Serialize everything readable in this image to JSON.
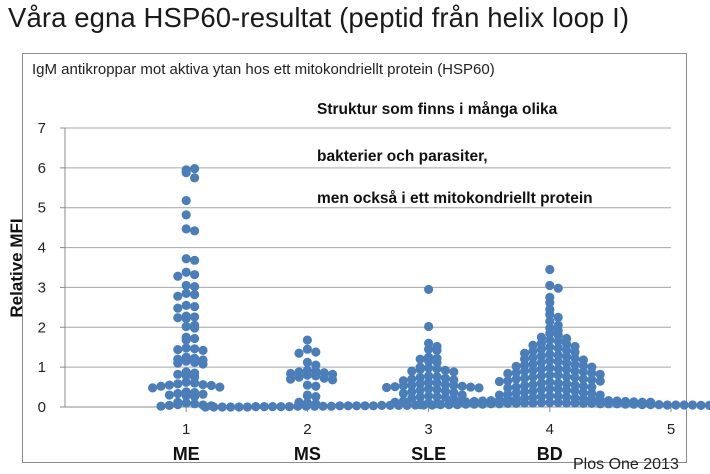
{
  "slide": {
    "title": "Våra egna HSP60-resultat (peptid från helix loop I)",
    "source": "Plos One 2013"
  },
  "chart_data": {
    "type": "scatter",
    "subtitle": "IgM antikroppar mot aktiva ytan hos ett mitokondriellt protein (HSP60)",
    "annotations": [
      "Struktur som finns i många olika",
      "bakterier och parasiter,",
      "men också i ett mitokondriellt protein"
    ],
    "ylabel": "Relative MFI",
    "xlabel": "",
    "xlim": [
      0,
      5
    ],
    "ylim": [
      0,
      7
    ],
    "x_ticks": [
      1,
      2,
      3,
      4,
      5
    ],
    "y_ticks": [
      0,
      1,
      2,
      3,
      4,
      5,
      6,
      7
    ],
    "grid": "horizontal",
    "point_color": "#4a7ebb",
    "grid_color": "#a6a6a6",
    "series": [
      {
        "name": "ME",
        "x": 1,
        "values": [
          5.95,
          5.98,
          5.88,
          5.75,
          5.18,
          4.82,
          4.47,
          4.42,
          3.72,
          3.68,
          3.38,
          3.32,
          3.28,
          3.05,
          3.02,
          2.85,
          2.82,
          2.78,
          2.55,
          2.52,
          2.48,
          2.28,
          2.26,
          2.24,
          2.22,
          2.05,
          2.02,
          1.98,
          1.75,
          1.72,
          1.68,
          1.48,
          1.46,
          1.44,
          1.42,
          1.25,
          1.22,
          1.2,
          1.18,
          1.15,
          1.12,
          1.1,
          1.08,
          0.88,
          0.85,
          0.82,
          0.78,
          0.75,
          0.62,
          0.6,
          0.58,
          0.56,
          0.55,
          0.54,
          0.52,
          0.5,
          0.48,
          0.38,
          0.36,
          0.34,
          0.32,
          0.3,
          0.28,
          0.26,
          0.12,
          0.1,
          0.08,
          0.06,
          0.05,
          0.04,
          0.03,
          0.02
        ]
      },
      {
        "name": "MS",
        "x": 2,
        "values": [
          1.68,
          1.45,
          1.38,
          1.35,
          1.12,
          1.05,
          0.92,
          0.9,
          0.88,
          0.86,
          0.84,
          0.82,
          0.8,
          0.78,
          0.75,
          0.72,
          0.7,
          0.68,
          0.55,
          0.52,
          0.3,
          0.28,
          0.26,
          0.12,
          0.1,
          0.08
        ]
      },
      {
        "name": "SLE",
        "x": 3,
        "values": [
          2.95,
          2.02,
          1.6,
          1.52,
          1.45,
          1.42,
          1.25,
          1.22,
          1.2,
          1.15,
          1.12,
          1.0,
          0.98,
          0.96,
          0.94,
          0.92,
          0.9,
          0.88,
          0.78,
          0.76,
          0.74,
          0.72,
          0.7,
          0.68,
          0.66,
          0.62,
          0.6,
          0.58,
          0.56,
          0.55,
          0.54,
          0.53,
          0.52,
          0.51,
          0.5,
          0.49,
          0.48,
          0.46,
          0.44,
          0.42,
          0.4,
          0.38,
          0.36,
          0.34,
          0.3,
          0.28,
          0.26,
          0.25,
          0.24,
          0.22,
          0.2,
          0.15,
          0.14,
          0.12,
          0.1,
          0.08,
          0.06
        ]
      },
      {
        "name": "BD",
        "x": 4,
        "values": [
          3.45,
          3.05,
          2.98,
          2.75,
          2.62,
          2.45,
          2.32,
          2.25,
          2.15,
          2.05,
          1.98,
          1.92,
          1.85,
          1.8,
          1.75,
          1.72,
          1.68,
          1.65,
          1.6,
          1.58,
          1.55,
          1.52,
          1.5,
          1.48,
          1.45,
          1.42,
          1.4,
          1.38,
          1.35,
          1.32,
          1.3,
          1.28,
          1.26,
          1.24,
          1.22,
          1.2,
          1.18,
          1.16,
          1.14,
          1.12,
          1.1,
          1.08,
          1.06,
          1.05,
          1.04,
          1.02,
          1.0,
          0.98,
          0.96,
          0.95,
          0.94,
          0.92,
          0.9,
          0.9,
          0.88,
          0.86,
          0.85,
          0.84,
          0.82,
          0.8,
          0.8,
          0.78,
          0.76,
          0.75,
          0.74,
          0.72,
          0.7,
          0.7,
          0.68,
          0.66,
          0.65,
          0.64,
          0.62,
          0.6,
          0.6,
          0.58,
          0.56,
          0.55,
          0.54,
          0.52,
          0.5,
          0.5,
          0.48,
          0.46,
          0.45,
          0.44,
          0.42,
          0.4,
          0.4,
          0.38,
          0.36,
          0.35,
          0.34,
          0.32,
          0.3,
          0.3,
          0.28,
          0.27,
          0.26,
          0.25,
          0.24,
          0.23,
          0.22,
          0.21,
          0.2,
          0.2,
          0.19,
          0.18,
          0.17,
          0.16,
          0.16,
          0.15,
          0.15,
          0.14,
          0.14,
          0.13,
          0.13,
          0.12,
          0.12,
          0.12,
          0.11,
          0.11,
          0.11,
          0.1,
          0.1,
          0.1,
          0.1,
          0.09,
          0.09,
          0.09,
          0.09,
          0.08,
          0.08,
          0.08,
          0.08,
          0.08,
          0.07,
          0.07,
          0.07,
          0.07,
          0.07,
          0.06,
          0.06,
          0.06,
          0.06,
          0.06,
          0.06,
          0.05,
          0.05,
          0.05,
          0.05,
          0.05,
          0.05,
          0.05,
          0.04,
          0.04,
          0.04,
          0.04,
          0.04,
          0.04,
          0.04,
          0.04,
          0.03,
          0.03,
          0.03,
          0.03,
          0.03,
          0.03,
          0.03,
          0.03,
          0.03,
          0.02,
          0.02,
          0.02,
          0.02,
          0.02,
          0.02,
          0.02,
          0.02,
          0.02,
          0.02,
          0.01,
          0.01,
          0.01,
          0.01,
          0.01,
          0.01,
          0.01,
          0.01,
          0.01,
          0.01,
          0.01,
          0.0,
          0.0,
          0.0,
          0.0,
          0.0,
          0.0,
          0.0,
          0.0,
          0.0,
          0.0,
          0.0,
          0.0
        ]
      }
    ]
  }
}
